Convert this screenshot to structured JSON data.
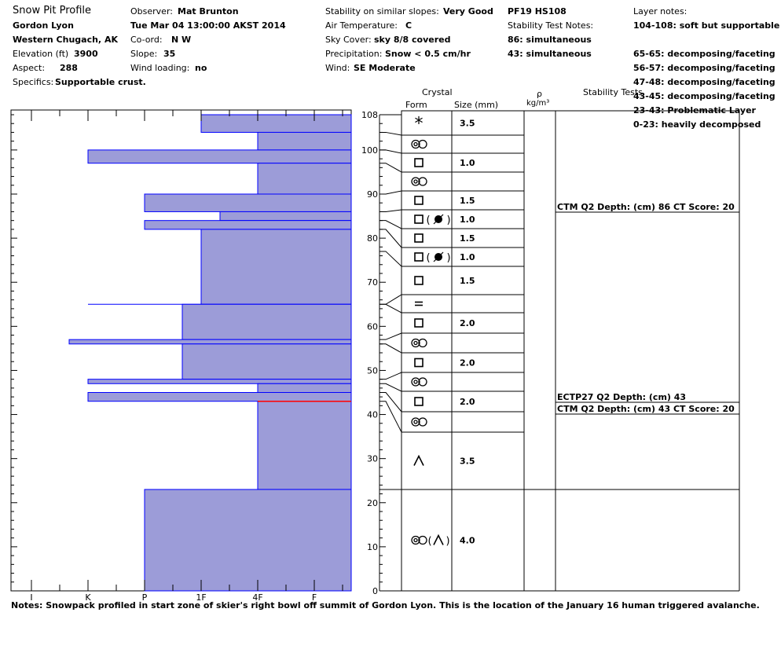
{
  "header": {
    "title": "Snow Pit Profile",
    "location": "Gordon Lyon",
    "region": "Western Chugach, AK",
    "elevation_label": "Elevation (ft)",
    "elevation": "3900",
    "aspect_label": "Aspect:",
    "aspect": "288",
    "specifics_label": "Specifics:",
    "specifics": "Supportable crust.",
    "observer_label": "Observer:",
    "observer": "Mat Brunton",
    "datetime": "Tue Mar 04 13:00:00 AKST 2014",
    "coord_label": "Co-ord:",
    "coord": "N  W",
    "slope_label": "Slope:",
    "slope": "35",
    "wind_loading_label": "Wind loading:",
    "wind_loading": "no",
    "stability_label": "Stability on similar slopes:",
    "stability": "Very Good",
    "air_temp_label": "Air Temperature:",
    "air_temp": "C",
    "sky_label": "Sky Cover:",
    "sky": "sky 8/8 covered",
    "precip_label": "Precipitation:",
    "precip": "Snow < 0.5 cm/hr",
    "wind_label": "Wind:",
    "wind": "SE Moderate",
    "pf_hs": "PF19 HS108",
    "stn_label": "Stability Test Notes:",
    "stn": [
      "86: simultaneous",
      "43: simultaneous"
    ],
    "layer_notes_label": "Layer notes:",
    "layer_notes": [
      "104-108: soft but supportable",
      "65-65: decomposing/faceting",
      "56-57: decomposing/faceting",
      "47-48: decomposing/faceting",
      "43-45: decomposing/faceting",
      "23-43: Problematic Layer",
      "0-23: heavily decomposed"
    ]
  },
  "columns": {
    "crystal": "Crystal",
    "form": "Form",
    "size": "Size (mm)",
    "rho": "ρ",
    "density_unit": "kg/m³",
    "stability_tests": "Stability Tests"
  },
  "notes": "Notes:  Snowpack profiled in start zone of skier's right bowl off summit of Gordon Lyon.  This is the location of the January 16 human triggered avalanche.",
  "chart_data": {
    "type": "bar",
    "x_axis": {
      "ticks": [
        "I",
        "K",
        "P",
        "1F",
        "4F",
        "F"
      ]
    },
    "y_axis": {
      "range": [
        0,
        108
      ],
      "ticks": [
        0,
        10,
        20,
        30,
        40,
        50,
        60,
        70,
        80,
        90,
        100,
        108
      ]
    },
    "colors": {
      "fill": "#9c9cd8",
      "edge": "#0000ff",
      "weak_layer": "#ff0000"
    },
    "hardness_layers": [
      {
        "bottom": 104,
        "top": 108,
        "hardness": "1F"
      },
      {
        "bottom": 100,
        "top": 104,
        "hardness": "4F"
      },
      {
        "bottom": 97,
        "top": 100,
        "hardness": "K"
      },
      {
        "bottom": 90,
        "top": 97,
        "hardness": "4F"
      },
      {
        "bottom": 86,
        "top": 90,
        "hardness": "P"
      },
      {
        "bottom": 84,
        "top": 86,
        "hardness": "1F-"
      },
      {
        "bottom": 82,
        "top": 84,
        "hardness": "P"
      },
      {
        "bottom": 65,
        "top": 82,
        "hardness": "1F"
      },
      {
        "bottom": 65,
        "top": 65,
        "hardness": "K"
      },
      {
        "bottom": 57,
        "top": 65,
        "hardness": "1F+"
      },
      {
        "bottom": 56,
        "top": 57,
        "hardness": "K+"
      },
      {
        "bottom": 48,
        "top": 56,
        "hardness": "1F+"
      },
      {
        "bottom": 47,
        "top": 48,
        "hardness": "K"
      },
      {
        "bottom": 45,
        "top": 47,
        "hardness": "4F"
      },
      {
        "bottom": 43,
        "top": 45,
        "hardness": "K"
      },
      {
        "bottom": 23,
        "top": 43,
        "hardness": "4F"
      },
      {
        "bottom": 0,
        "top": 23,
        "hardness": "P"
      }
    ],
    "weak_layer_depth": 43,
    "crystal_layers": [
      {
        "bottom": 104,
        "top": 108,
        "form": "new-snow",
        "size": "3.5"
      },
      {
        "bottom": 100,
        "top": 104,
        "form": "rounded",
        "size": ""
      },
      {
        "bottom": 97,
        "top": 100,
        "form": "faceted",
        "size": "1.0"
      },
      {
        "bottom": 90,
        "top": 97,
        "form": "rounded",
        "size": ""
      },
      {
        "bottom": 86,
        "top": 90,
        "form": "faceted",
        "size": "1.5"
      },
      {
        "bottom": 84,
        "top": 86,
        "form": "faceted-melt",
        "size": "1.0"
      },
      {
        "bottom": 82,
        "top": 84,
        "form": "faceted",
        "size": "1.5"
      },
      {
        "bottom": 77,
        "top": 82,
        "form": "faceted-melt",
        "size": "1.0"
      },
      {
        "bottom": 65,
        "top": 77,
        "form": "faceted",
        "size": "1.5"
      },
      {
        "bottom": 65,
        "top": 65,
        "form": "crust",
        "size": ""
      },
      {
        "bottom": 57,
        "top": 65,
        "form": "faceted",
        "size": "2.0"
      },
      {
        "bottom": 56,
        "top": 57,
        "form": "rounded",
        "size": ""
      },
      {
        "bottom": 48,
        "top": 56,
        "form": "faceted",
        "size": "2.0"
      },
      {
        "bottom": 47,
        "top": 48,
        "form": "rounded",
        "size": ""
      },
      {
        "bottom": 45,
        "top": 47,
        "form": "faceted",
        "size": "2.0"
      },
      {
        "bottom": 43,
        "top": 45,
        "form": "rounded",
        "size": ""
      },
      {
        "bottom": 23,
        "top": 43,
        "form": "depth-hoar",
        "size": "3.5"
      },
      {
        "bottom": 0,
        "top": 23,
        "form": "rounded-depth-hoar",
        "size": "4.0"
      }
    ],
    "stability_tests": [
      {
        "depth": 86,
        "text": "CTM Q2 Depth: (cm) 86 CT Score: 20"
      },
      {
        "depth": 43,
        "text": "ECTP27 Q2 Depth: (cm) 43"
      },
      {
        "depth": 43,
        "text": "CTM Q2 Depth: (cm) 43 CT Score: 20"
      }
    ]
  }
}
